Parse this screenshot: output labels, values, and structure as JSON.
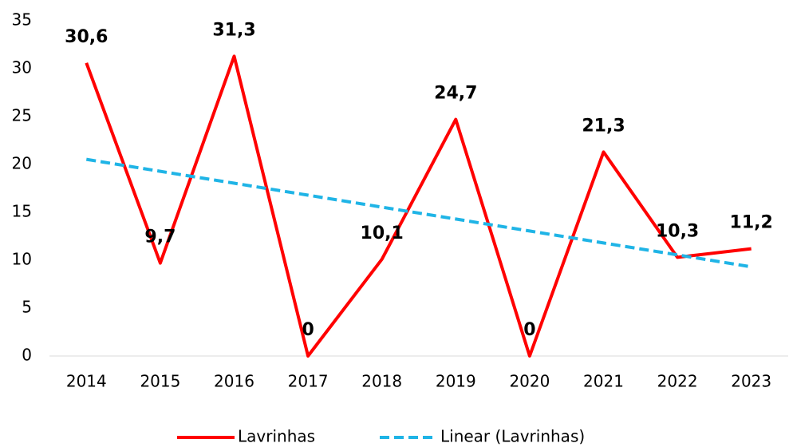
{
  "chart_data": {
    "type": "line",
    "categories": [
      "2014",
      "2015",
      "2016",
      "2017",
      "2018",
      "2019",
      "2020",
      "2021",
      "2022",
      "2023"
    ],
    "series": [
      {
        "name": "Lavrinhas",
        "color": "#ff0000",
        "line_style": "solid",
        "values": [
          30.6,
          9.7,
          31.3,
          0,
          10.1,
          24.7,
          0,
          21.3,
          10.3,
          11.2
        ],
        "value_labels": [
          "30,6",
          "9,7",
          "31,3",
          "0",
          "10,1",
          "24,7",
          "0",
          "21,3",
          "10,3",
          "11,2"
        ]
      },
      {
        "name": "Linear (Lavrinhas)",
        "color": "#1fb4e6",
        "line_style": "dashed",
        "values": [
          20.53,
          19.28,
          18.04,
          16.79,
          15.54,
          14.3,
          13.05,
          11.8,
          10.56,
          9.31
        ]
      }
    ],
    "ylim": [
      0,
      35
    ],
    "yticks": [
      0,
      5,
      10,
      15,
      20,
      25,
      30,
      35
    ],
    "legend": "bottom"
  }
}
